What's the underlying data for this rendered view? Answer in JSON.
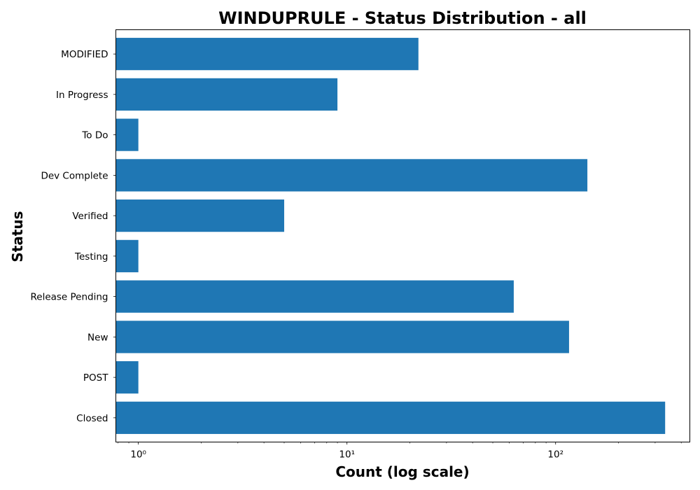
{
  "chart_data": {
    "type": "bar",
    "orientation": "horizontal",
    "title": "WINDUPRULE - Status Distribution - all",
    "xlabel": "Count (log scale)",
    "ylabel": "Status",
    "x_scale": "log",
    "xlim": [
      0.78,
      440
    ],
    "x_ticks": [
      1,
      10,
      100
    ],
    "x_tick_labels": [
      "10⁰",
      "10¹",
      "10²"
    ],
    "categories": [
      "Closed",
      "POST",
      "New",
      "Release Pending",
      "Testing",
      "Verified",
      "Dev Complete",
      "To Do",
      "In Progress",
      "MODIFIED"
    ],
    "values": [
      335,
      1,
      116,
      63,
      1,
      5,
      142,
      1,
      9,
      22
    ],
    "grid": false,
    "legend": "none",
    "bar_color": "#1f77b4"
  }
}
